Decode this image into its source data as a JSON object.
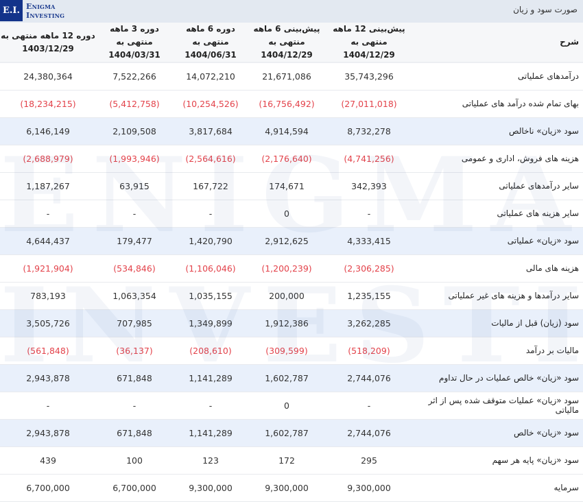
{
  "logo": {
    "mark": "E.I.",
    "line1": "Enigma",
    "line2": "Investing"
  },
  "page_title": "صورت سود و زیان",
  "colors": {
    "header_bg": "#e3e9f1",
    "brand": "#13338a",
    "negative": "#e3424a",
    "highlight_row": "#e9f0fb"
  },
  "table": {
    "label_header": "شرح",
    "columns": [
      {
        "title": "پیش‌بینی 12 ماهه منتهی به",
        "date": "1404/12/29"
      },
      {
        "title": "پیش‌بینی 6 ماهه منتهی به",
        "date": "1404/12/29"
      },
      {
        "title": "دوره 6 ماهه منتهی به",
        "date": "1404/06/31"
      },
      {
        "title": "دوره 3 ماهه منتهی به",
        "date": "1404/03/31"
      },
      {
        "title": "دوره 12 ماهه منتهی به",
        "date": "1403/12/29"
      }
    ],
    "rows": [
      {
        "label": "درآمدهای عملیاتی",
        "values": [
          "35,743,296",
          "21,671,086",
          "14,072,210",
          "7,522,266",
          "24,380,364"
        ]
      },
      {
        "label": "بهای تمام شده درآمد های عملیاتی",
        "values": [
          "(27,011,018)",
          "(16,756,492)",
          "(10,254,526)",
          "(5,412,758)",
          "(18,234,215)"
        ]
      },
      {
        "label": "سود «زیان» ناخالص",
        "values": [
          "8,732,278",
          "4,914,594",
          "3,817,684",
          "2,109,508",
          "6,146,149"
        ]
      },
      {
        "label": "هزینه های فروش، اداری و عمومی",
        "values": [
          "(4,741,256)",
          "(2,176,640)",
          "(2,564,616)",
          "(1,993,946)",
          "(2,688,979)"
        ]
      },
      {
        "label": "سایر درآمدهای عملیاتی",
        "values": [
          "342,393",
          "174,671",
          "167,722",
          "63,915",
          "1,187,267"
        ]
      },
      {
        "label": "سایر هزینه های عملیاتی",
        "values": [
          "-",
          "0",
          "-",
          "-",
          "-"
        ]
      },
      {
        "label": "سود «زیان» عملیاتی",
        "values": [
          "4,333,415",
          "2,912,625",
          "1,420,790",
          "179,477",
          "4,644,437"
        ]
      },
      {
        "label": "هزینه های مالی",
        "values": [
          "(2,306,285)",
          "(1,200,239)",
          "(1,106,046)",
          "(534,846)",
          "(1,921,904)"
        ]
      },
      {
        "label": "سایر درآمدها و هزینه های غیر عملیاتی",
        "values": [
          "1,235,155",
          "200,000",
          "1,035,155",
          "1,063,354",
          "783,193"
        ]
      },
      {
        "label": "سود (زیان) قبل از مالیات",
        "values": [
          "3,262,285",
          "1,912,386",
          "1,349,899",
          "707,985",
          "3,505,726"
        ]
      },
      {
        "label": "مالیات بر درآمد",
        "values": [
          "(518,209)",
          "(309,599)",
          "(208,610)",
          "(36,137)",
          "(561,848)"
        ]
      },
      {
        "label": "سود «زیان» خالص عملیات در حال تداوم",
        "values": [
          "2,744,076",
          "1,602,787",
          "1,141,289",
          "671,848",
          "2,943,878"
        ]
      },
      {
        "label": "سود «زیان» عملیات متوقف شده پس از اثر مالیاتی",
        "values": [
          "-",
          "0",
          "-",
          "-",
          "-"
        ]
      },
      {
        "label": "سود «زیان» خالص",
        "values": [
          "2,744,076",
          "1,602,787",
          "1,141,289",
          "671,848",
          "2,943,878"
        ]
      },
      {
        "label": "سود «زیان» پایه هر سهم",
        "values": [
          "295",
          "172",
          "123",
          "100",
          "439"
        ]
      },
      {
        "label": "سرمایه",
        "values": [
          "9,300,000",
          "9,300,000",
          "9,300,000",
          "6,700,000",
          "6,700,000"
        ]
      }
    ]
  },
  "watermark": {
    "line1": "ENIGMA",
    "line2": "INVESTING"
  }
}
